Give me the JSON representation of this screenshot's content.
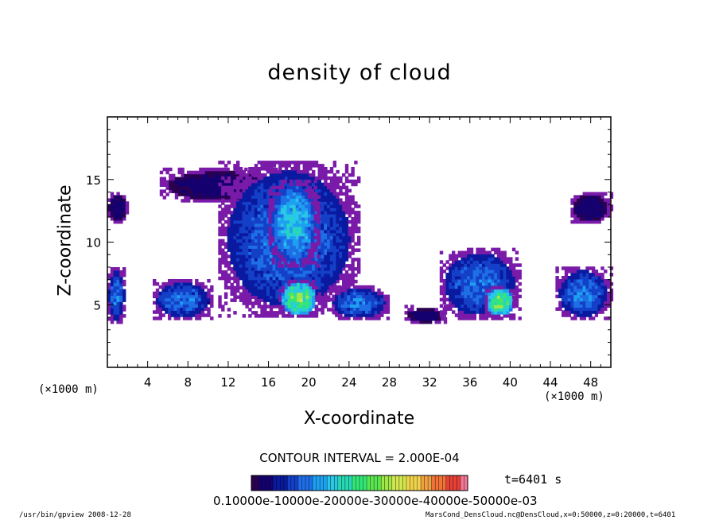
{
  "chart_data": {
    "type": "heatmap",
    "title": "density of cloud",
    "xlabel": "X-coordinate",
    "ylabel": "Z-coordinate",
    "x_unit_left": "(×1000 m)",
    "x_unit_right": "(×1000 m)",
    "xlim": [
      0,
      50
    ],
    "ylim": [
      0,
      20
    ],
    "xticks": [
      4,
      8,
      12,
      16,
      20,
      24,
      28,
      32,
      36,
      40,
      44,
      48
    ],
    "yticks": [
      5,
      10,
      15
    ],
    "contour_interval": "CONTOUR INTERVAL = 2.000E-04",
    "time_label": "t=6401 s",
    "colorbar_labels": "0.10000e-10000e-20000e-30000e-40000e-50000e-03",
    "colorbar_colors": [
      "#2a0050",
      "#14006e",
      "#0a1aa0",
      "#1440c8",
      "#1e6ee6",
      "#1ea0f0",
      "#28c8e6",
      "#28d8b4",
      "#32e678",
      "#5ae650",
      "#a0e646",
      "#d2e650",
      "#f0d24b",
      "#f0a041",
      "#f07337",
      "#e64137",
      "#f07896"
    ],
    "cloud_regions": [
      {
        "x": [
          5.2,
          17.0
        ],
        "z": [
          13.2,
          15.8
        ],
        "level": "low"
      },
      {
        "x": [
          11.0,
          25.0
        ],
        "z": [
          4.0,
          16.5
        ],
        "level": "mid"
      },
      {
        "x": [
          16.0,
          21.0
        ],
        "z": [
          8.0,
          15.0
        ],
        "level": "mid-high"
      },
      {
        "x": [
          17.0,
          21.0
        ],
        "z": [
          4.0,
          7.0
        ],
        "level": "high"
      },
      {
        "x": [
          4.5,
          10.5
        ],
        "z": [
          3.8,
          7.0
        ],
        "level": "mid"
      },
      {
        "x": [
          22.0,
          28.0
        ],
        "z": [
          3.8,
          6.5
        ],
        "level": "mid"
      },
      {
        "x": [
          29.5,
          33.5
        ],
        "z": [
          3.5,
          4.8
        ],
        "level": "low"
      },
      {
        "x": [
          33.0,
          41.0
        ],
        "z": [
          3.8,
          9.5
        ],
        "level": "mid"
      },
      {
        "x": [
          37.5,
          40.5
        ],
        "z": [
          4.0,
          6.5
        ],
        "level": "high"
      },
      {
        "x": [
          44.5,
          50.0
        ],
        "z": [
          3.8,
          8.0
        ],
        "level": "mid"
      },
      {
        "x": [
          46.0,
          50.0
        ],
        "z": [
          11.5,
          14.0
        ],
        "level": "low"
      },
      {
        "x": [
          0.0,
          2.0
        ],
        "z": [
          11.5,
          14.0
        ],
        "level": "low"
      },
      {
        "x": [
          0.0,
          1.8
        ],
        "z": [
          3.5,
          8.0
        ],
        "level": "mid"
      }
    ]
  },
  "footer_left": "/usr/bin/gpview  2008-12-28",
  "footer_right": "MarsCond_DensCloud.nc@DensCloud,x=0:50000,z=0:20000,t=6401"
}
